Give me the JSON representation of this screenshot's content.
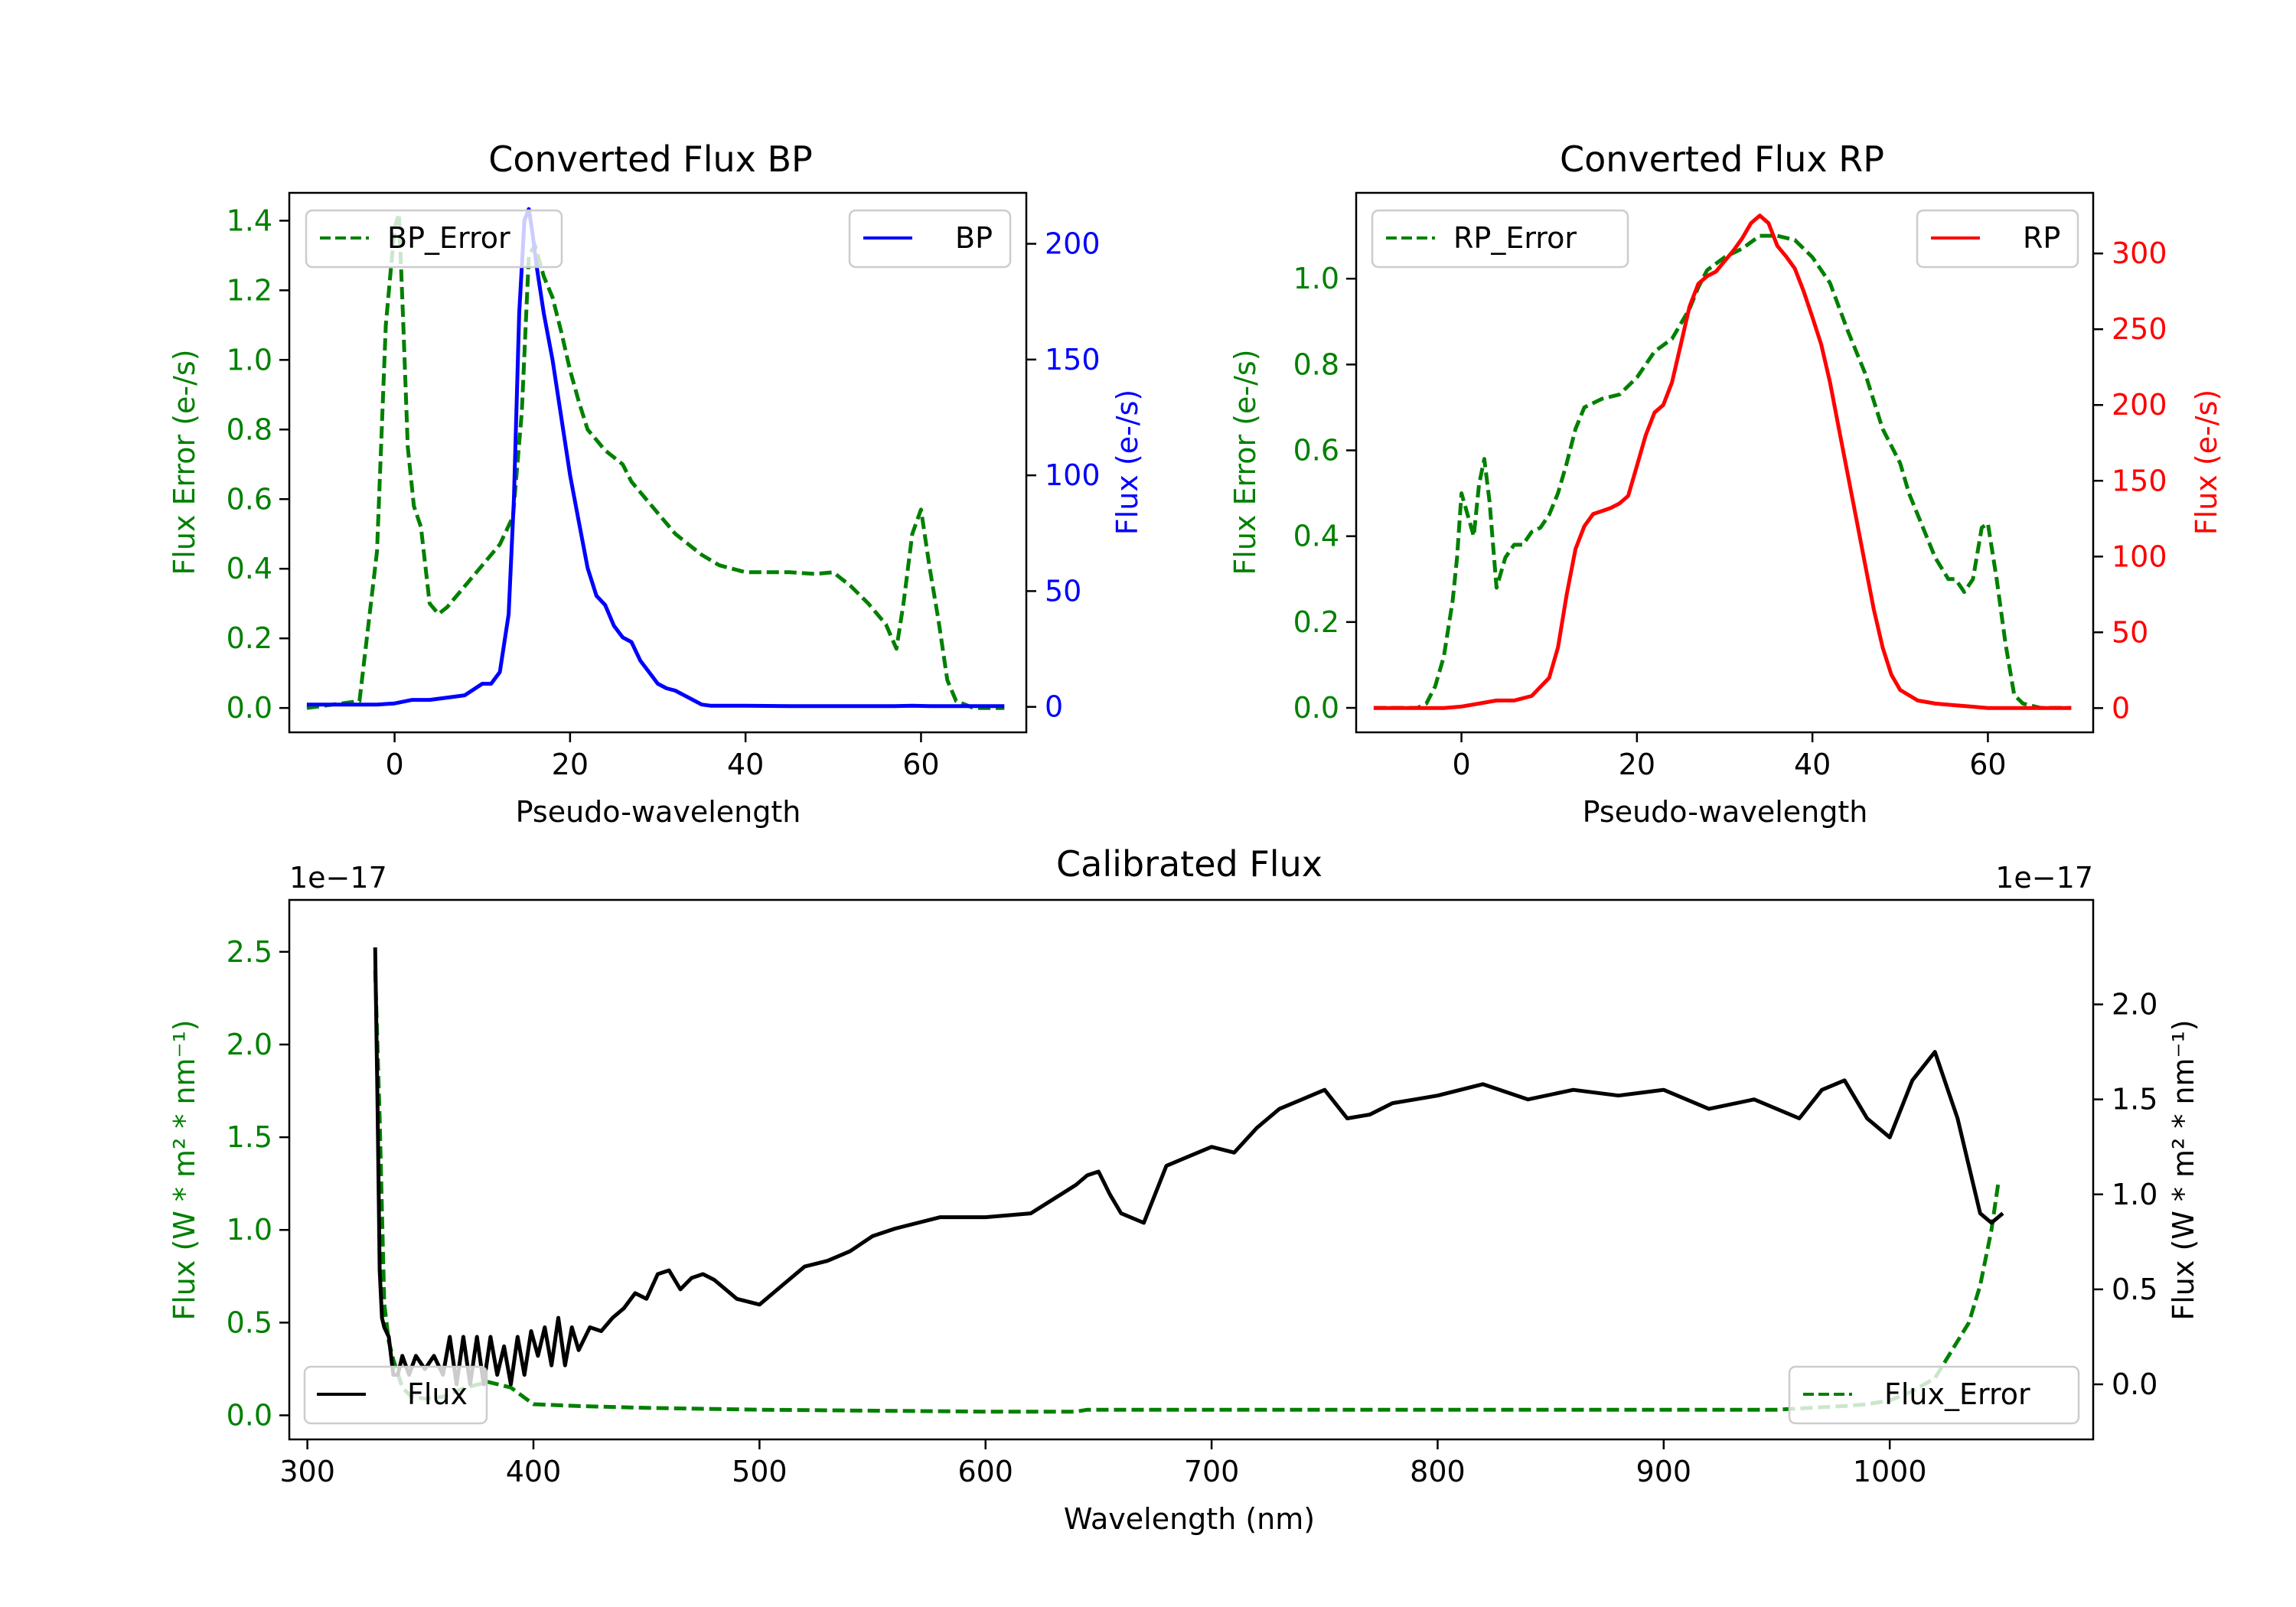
{
  "chart_data": [
    {
      "type": "line",
      "title": "Converted Flux BP",
      "xlabel": "Pseudo-wavelength",
      "xlim": [
        -12,
        72
      ],
      "xticks": [
        0,
        20,
        40,
        60
      ],
      "left_axis": {
        "label": "Flux Error (e-/s)",
        "color": "#008000",
        "ylim": [
          -0.07,
          1.48
        ],
        "ticks": [
          "0.0",
          "0.2",
          "0.4",
          "0.6",
          "0.8",
          "1.0",
          "1.2",
          "1.4"
        ],
        "tick_values": [
          0,
          0.2,
          0.4,
          0.6,
          0.8,
          1.0,
          1.2,
          1.4
        ]
      },
      "right_axis": {
        "label": "Flux (e-/s)",
        "color": "#0000ff",
        "ylim": [
          -11,
          222
        ],
        "ticks": [
          "0",
          "50",
          "100",
          "150",
          "200"
        ],
        "tick_values": [
          0,
          50,
          100,
          150,
          200
        ]
      },
      "series": [
        {
          "name": "BP_Error",
          "axis": "left",
          "color": "#008000",
          "dash": true,
          "x": [
            -10,
            -4,
            -2,
            -1,
            0,
            0.5,
            1,
            1.5,
            2.2,
            3,
            4,
            5,
            6,
            8,
            10,
            12,
            13.5,
            14.5,
            15.3,
            16,
            17,
            18,
            19,
            20,
            21,
            22,
            23,
            24,
            25,
            26,
            27,
            28,
            30,
            32,
            35,
            37,
            40,
            45,
            48,
            50,
            52,
            54,
            56,
            57.2,
            58,
            59,
            60,
            61,
            62,
            63,
            64,
            66,
            69.5
          ],
          "y": [
            0,
            0.02,
            0.45,
            1.1,
            1.38,
            1.42,
            1.1,
            0.75,
            0.58,
            0.52,
            0.3,
            0.27,
            0.29,
            0.35,
            0.41,
            0.47,
            0.55,
            0.85,
            1.3,
            1.33,
            1.24,
            1.18,
            1.08,
            0.97,
            0.88,
            0.8,
            0.77,
            0.74,
            0.72,
            0.7,
            0.65,
            0.62,
            0.56,
            0.5,
            0.44,
            0.41,
            0.39,
            0.39,
            0.385,
            0.39,
            0.35,
            0.3,
            0.24,
            0.17,
            0.3,
            0.5,
            0.57,
            0.4,
            0.25,
            0.08,
            0.02,
            0,
            0
          ]
        },
        {
          "name": "BP",
          "axis": "right",
          "color": "#0000ff",
          "dash": false,
          "x": [
            -10,
            -5,
            -2,
            0,
            2,
            4,
            6,
            8,
            10,
            11,
            12,
            13,
            13.6,
            14.2,
            14.8,
            15.3,
            15.7,
            16.2,
            17,
            18,
            19,
            20,
            21,
            22,
            23,
            24,
            25,
            26,
            27,
            28,
            29,
            30,
            31,
            32,
            33,
            34,
            35,
            36,
            38,
            40,
            45,
            50,
            55,
            57,
            59,
            61,
            63,
            66,
            69.5
          ],
          "y": [
            1,
            1,
            1,
            1.5,
            3,
            3,
            4,
            5,
            10,
            10,
            15,
            40,
            90,
            170,
            210,
            215,
            205,
            190,
            170,
            150,
            125,
            100,
            80,
            60,
            48,
            44,
            35,
            30,
            28,
            20,
            15,
            10,
            8,
            7,
            5,
            3,
            1,
            0.5,
            0.5,
            0.5,
            0.3,
            0.3,
            0.3,
            0.3,
            0.5,
            0.3,
            0.3,
            0.3,
            0.3
          ]
        }
      ],
      "legend": [
        {
          "label": "BP_Error",
          "position": "upper-left"
        },
        {
          "label": "BP",
          "position": "upper-right"
        }
      ]
    },
    {
      "type": "line",
      "title": "Converted Flux RP",
      "xlabel": "Pseudo-wavelength",
      "xlim": [
        -12,
        72
      ],
      "xticks": [
        0,
        20,
        40,
        60
      ],
      "left_axis": {
        "label": "Flux Error (e-/s)",
        "color": "#008000",
        "ylim": [
          -0.057,
          1.2
        ],
        "ticks": [
          "0.0",
          "0.2",
          "0.4",
          "0.6",
          "0.8",
          "1.0"
        ],
        "tick_values": [
          0,
          0.2,
          0.4,
          0.6,
          0.8,
          1.0
        ]
      },
      "right_axis": {
        "label": "Flux (e-/s)",
        "color": "#ff0000",
        "ylim": [
          -16,
          340
        ],
        "ticks": [
          "0",
          "50",
          "100",
          "150",
          "200",
          "250",
          "300"
        ],
        "tick_values": [
          0,
          50,
          100,
          150,
          200,
          250,
          300
        ]
      },
      "series": [
        {
          "name": "RP_Error",
          "axis": "left",
          "color": "#008000",
          "dash": true,
          "x": [
            -10,
            -5,
            -4,
            -3,
            -2,
            -1,
            -0.5,
            0,
            0.7,
            1.4,
            2,
            2.6,
            3.2,
            4,
            5,
            6,
            7,
            8,
            9,
            10,
            11,
            12,
            13,
            14,
            16,
            18,
            20,
            22,
            24,
            26,
            27,
            28,
            30,
            32,
            34,
            36,
            38,
            40,
            42,
            44,
            46,
            48,
            50,
            51,
            52,
            54,
            55.5,
            56.3,
            57.3,
            58.3,
            59.3,
            60,
            61,
            62,
            63,
            64,
            66,
            69.5
          ],
          "y": [
            0,
            0,
            0.01,
            0.05,
            0.12,
            0.25,
            0.35,
            0.5,
            0.45,
            0.4,
            0.52,
            0.58,
            0.48,
            0.28,
            0.35,
            0.38,
            0.38,
            0.41,
            0.42,
            0.45,
            0.5,
            0.57,
            0.65,
            0.7,
            0.72,
            0.73,
            0.77,
            0.83,
            0.86,
            0.93,
            0.98,
            1.02,
            1.05,
            1.07,
            1.1,
            1.1,
            1.09,
            1.05,
            0.99,
            0.88,
            0.78,
            0.65,
            0.57,
            0.5,
            0.45,
            0.35,
            0.3,
            0.3,
            0.27,
            0.3,
            0.42,
            0.43,
            0.3,
            0.15,
            0.03,
            0.01,
            0,
            0
          ]
        },
        {
          "name": "RP",
          "axis": "right",
          "color": "#ff0000",
          "dash": false,
          "x": [
            -10,
            -2,
            0,
            2,
            4,
            6,
            8,
            10,
            11,
            12,
            13,
            14,
            15,
            16,
            17,
            18,
            19,
            20,
            21,
            22,
            23,
            24,
            25,
            26,
            27,
            28,
            29,
            30,
            31,
            32,
            33,
            34,
            35,
            36,
            37,
            38,
            39,
            40,
            41,
            42,
            43,
            44,
            45,
            46,
            47,
            48,
            49,
            50,
            52,
            54,
            56,
            58,
            60,
            62,
            65,
            69.5
          ],
          "y": [
            0,
            0,
            1,
            3,
            5,
            5,
            8,
            20,
            40,
            75,
            105,
            120,
            128,
            130,
            132,
            135,
            140,
            160,
            180,
            195,
            200,
            215,
            240,
            265,
            280,
            285,
            288,
            295,
            302,
            310,
            320,
            325,
            320,
            305,
            298,
            290,
            275,
            258,
            240,
            215,
            185,
            155,
            125,
            95,
            65,
            40,
            22,
            12,
            5,
            3,
            2,
            1,
            0,
            0,
            0,
            0
          ]
        }
      ],
      "legend": [
        {
          "label": "RP_Error",
          "position": "upper-left"
        },
        {
          "label": "RP",
          "position": "upper-right"
        }
      ]
    },
    {
      "type": "line",
      "title": "Calibrated Flux",
      "xlabel": "Wavelength (nm)",
      "xlim": [
        292,
        1090
      ],
      "xticks": [
        300,
        400,
        500,
        600,
        700,
        800,
        900,
        1000
      ],
      "left_axis": {
        "label": "Flux (W * m² * nm⁻¹)",
        "color": "#008000",
        "offset_text": "1e−17",
        "ylim": [
          -0.13,
          2.78
        ],
        "ticks": [
          "0.0",
          "0.5",
          "1.0",
          "1.5",
          "2.0",
          "2.5"
        ],
        "tick_values": [
          0,
          0.5,
          1.0,
          1.5,
          2.0,
          2.5
        ]
      },
      "right_axis": {
        "label": "Flux (W * m² * nm⁻¹)",
        "color": "#000000",
        "offset_text": "1e−17",
        "ylim": [
          -0.29,
          2.55
        ],
        "ticks": [
          "0.0",
          "0.5",
          "1.0",
          "1.5",
          "2.0"
        ],
        "tick_values": [
          0,
          0.5,
          1.0,
          1.5,
          2.0
        ]
      },
      "series": [
        {
          "name": "Flux_Error",
          "axis": "left",
          "color": "#008000",
          "dash": true,
          "x": [
            330,
            332,
            334,
            336,
            338,
            342,
            346,
            352,
            360,
            370,
            380,
            390,
            400,
            420,
            450,
            500,
            600,
            640,
            645,
            700,
            800,
            900,
            950,
            965,
            980,
            990,
            1000,
            1010,
            1020,
            1025,
            1030,
            1035,
            1040,
            1045,
            1048
          ],
          "y": [
            2.4,
            1.6,
            0.6,
            0.4,
            0.3,
            0.15,
            0.1,
            0.09,
            0.1,
            0.15,
            0.18,
            0.15,
            0.06,
            0.05,
            0.04,
            0.03,
            0.02,
            0.02,
            0.03,
            0.03,
            0.03,
            0.03,
            0.03,
            0.04,
            0.05,
            0.06,
            0.08,
            0.13,
            0.2,
            0.3,
            0.4,
            0.5,
            0.7,
            1.0,
            1.25
          ]
        },
        {
          "name": "Flux",
          "axis": "right",
          "color": "#000000",
          "dash": false,
          "x": [
            330,
            331,
            332,
            333,
            334,
            336,
            338,
            340,
            342,
            345,
            348,
            352,
            356,
            360,
            363,
            366,
            369,
            372,
            375,
            378,
            381,
            384,
            387,
            390,
            393,
            396,
            399,
            402,
            405,
            408,
            411,
            414,
            417,
            420,
            425,
            430,
            435,
            440,
            445,
            450,
            455,
            460,
            465,
            470,
            475,
            480,
            490,
            500,
            510,
            520,
            530,
            540,
            550,
            560,
            580,
            600,
            620,
            640,
            645,
            650,
            655,
            660,
            670,
            680,
            690,
            700,
            710,
            720,
            730,
            740,
            750,
            760,
            770,
            780,
            790,
            800,
            820,
            840,
            860,
            880,
            900,
            920,
            940,
            960,
            970,
            980,
            990,
            1000,
            1010,
            1020,
            1030,
            1040,
            1045,
            1050
          ],
          "y": [
            2.3,
            1.5,
            0.6,
            0.35,
            0.3,
            0.25,
            0.05,
            0.05,
            0.15,
            0.05,
            0.15,
            0.08,
            0.15,
            0.05,
            0.25,
            0.0,
            0.25,
            0.0,
            0.25,
            0.0,
            0.25,
            0.05,
            0.2,
            0.0,
            0.25,
            0.05,
            0.28,
            0.15,
            0.3,
            0.1,
            0.35,
            0.1,
            0.3,
            0.18,
            0.3,
            0.28,
            0.35,
            0.4,
            0.48,
            0.45,
            0.58,
            0.6,
            0.5,
            0.56,
            0.58,
            0.55,
            0.45,
            0.42,
            0.52,
            0.62,
            0.65,
            0.7,
            0.78,
            0.82,
            0.88,
            0.88,
            0.9,
            1.05,
            1.1,
            1.12,
            1.0,
            0.9,
            0.85,
            1.15,
            1.2,
            1.25,
            1.22,
            1.35,
            1.45,
            1.5,
            1.55,
            1.4,
            1.42,
            1.48,
            1.5,
            1.52,
            1.58,
            1.5,
            1.55,
            1.52,
            1.55,
            1.45,
            1.5,
            1.4,
            1.55,
            1.6,
            1.4,
            1.3,
            1.6,
            1.75,
            1.4,
            0.9,
            0.85,
            0.9
          ]
        }
      ],
      "legend": [
        {
          "label": "Flux",
          "position": "lower-left"
        },
        {
          "label": "Flux_Error",
          "position": "lower-right"
        }
      ]
    }
  ]
}
